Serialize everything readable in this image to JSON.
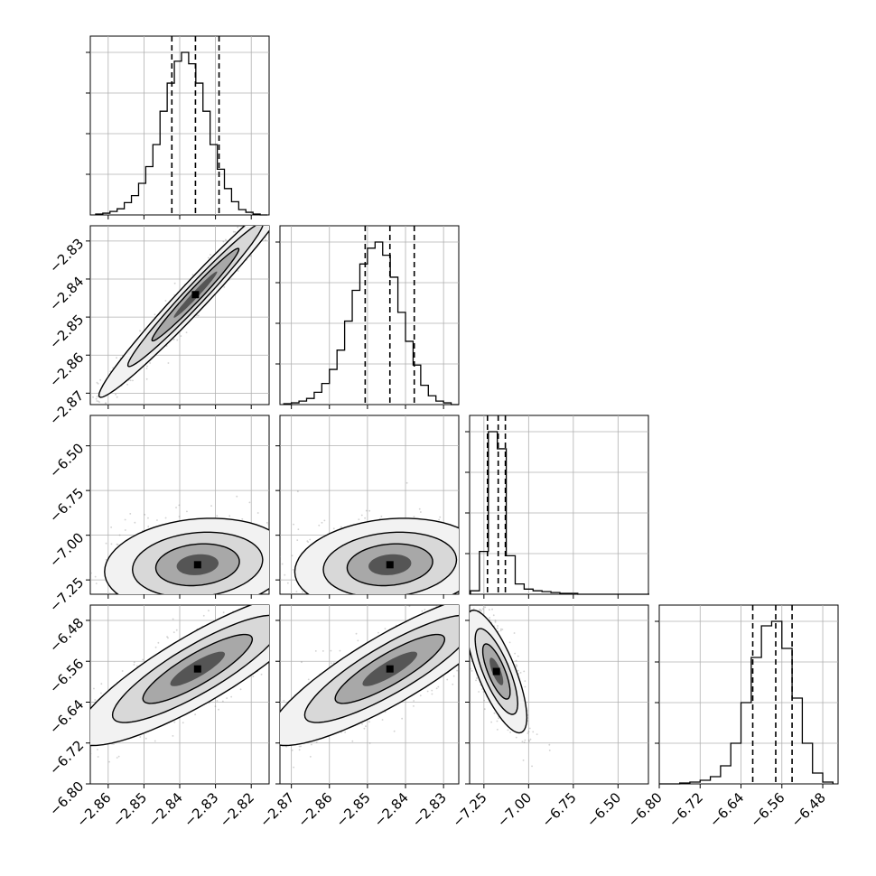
{
  "chart_data": [
    {
      "type": "histogram",
      "panel": "diag-0",
      "xlim": [
        -2.865,
        -2.815
      ],
      "bins_center": [
        -2.8625,
        -2.8605,
        -2.8585,
        -2.8565,
        -2.8545,
        -2.8525,
        -2.8505,
        -2.8485,
        -2.8465,
        -2.8445,
        -2.8425,
        -2.8405,
        -2.8385,
        -2.8365,
        -2.8345,
        -2.8325,
        -2.8305,
        -2.8285,
        -2.8265,
        -2.8245,
        -2.8225,
        -2.8205,
        -2.8185,
        -2.8165
      ],
      "counts": [
        1,
        2,
        4,
        7,
        14,
        22,
        36,
        55,
        80,
        118,
        150,
        175,
        185,
        172,
        150,
        118,
        80,
        52,
        30,
        15,
        6,
        3,
        1,
        0
      ],
      "quantile_lines": [
        -2.8422,
        -2.8356,
        -2.829
      ],
      "tick_labels": []
    },
    {
      "type": "histogram",
      "panel": "diag-1",
      "xlim": [
        -2.873,
        -2.826
      ],
      "bins_center": [
        -2.871,
        -2.869,
        -2.867,
        -2.865,
        -2.863,
        -2.861,
        -2.859,
        -2.857,
        -2.855,
        -2.853,
        -2.851,
        -2.849,
        -2.847,
        -2.845,
        -2.843,
        -2.841,
        -2.839,
        -2.837,
        -2.835,
        -2.833,
        -2.831,
        -2.829,
        -2.827
      ],
      "counts": [
        1,
        2,
        4,
        7,
        14,
        24,
        40,
        62,
        95,
        130,
        160,
        178,
        185,
        170,
        145,
        105,
        72,
        45,
        22,
        10,
        4,
        2,
        0
      ],
      "quantile_lines": [
        -2.8506,
        -2.8441,
        -2.8377
      ],
      "tick_labels": []
    },
    {
      "type": "histogram",
      "panel": "diag-2",
      "xlim": [
        -7.33,
        -6.33
      ],
      "bins_center": [
        -7.3,
        -7.25,
        -7.2,
        -7.15,
        -7.1,
        -7.05,
        -7.0,
        -6.95,
        -6.9,
        -6.85,
        -6.8,
        -6.75,
        -6.7,
        -6.65,
        -6.6,
        -6.55,
        -6.5,
        -6.45,
        -6.4,
        -6.35
      ],
      "counts": [
        4,
        50,
        190,
        170,
        45,
        12,
        6,
        4,
        3,
        2,
        1,
        1,
        0,
        0,
        0,
        0,
        0,
        0,
        0,
        0
      ],
      "quantile_lines": [
        -7.23,
        -7.17,
        -7.13
      ],
      "tick_labels": []
    },
    {
      "type": "histogram",
      "panel": "diag-3",
      "xlim": [
        -6.8,
        -6.45
      ],
      "bins_center": [
        -6.79,
        -6.77,
        -6.75,
        -6.73,
        -6.71,
        -6.69,
        -6.67,
        -6.65,
        -6.63,
        -6.61,
        -6.59,
        -6.57,
        -6.55,
        -6.53,
        -6.51,
        -6.49,
        -6.47
      ],
      "counts": [
        0,
        0,
        1,
        2,
        4,
        8,
        20,
        45,
        90,
        140,
        175,
        180,
        150,
        95,
        45,
        12,
        2
      ],
      "quantile_lines": [
        -6.617,
        -6.572,
        -6.54
      ],
      "tick_labels": [
        "−6.80",
        "−6.72",
        "−6.64",
        "−6.56",
        "−6.48"
      ]
    }
  ],
  "params": [
    {
      "name": "p0",
      "range": [
        -2.865,
        -2.815
      ],
      "ticks": [
        -2.86,
        -2.85,
        -2.84,
        -2.83,
        -2.82
      ],
      "tick_labels": [
        "−2.86",
        "−2.85",
        "−2.84",
        "−2.83",
        "−2.82"
      ]
    },
    {
      "name": "p1",
      "range": [
        -2.873,
        -2.826
      ],
      "ticks": [
        -2.87,
        -2.86,
        -2.85,
        -2.84,
        -2.83
      ],
      "tick_labels": [
        "−2.87",
        "−2.86",
        "−2.85",
        "−2.84",
        "−2.83"
      ]
    },
    {
      "name": "p2",
      "range": [
        -7.33,
        -6.33
      ],
      "ticks": [
        -7.25,
        -7.0,
        -6.75,
        -6.5
      ],
      "tick_labels": [
        "−7.25",
        "−7.00",
        "−6.75",
        "−6.50"
      ]
    },
    {
      "name": "p3",
      "range": [
        -6.8,
        -6.45
      ],
      "ticks": [
        -6.8,
        -6.72,
        -6.64,
        -6.56,
        -6.48
      ],
      "tick_labels": [
        "−6.80",
        "−6.72",
        "−6.64",
        "−6.56",
        "−6.48"
      ]
    }
  ],
  "pair_panels": [
    {
      "panel": "pair-1-0",
      "xparam": 0,
      "yparam": 1,
      "center": [
        -2.8356,
        -2.8441
      ],
      "contour_x_half": 0.0135,
      "contour_y_half": 0.0135,
      "correlation": 0.98
    },
    {
      "panel": "pair-2-0",
      "xparam": 0,
      "yparam": 2,
      "center": [
        -2.835,
        -7.165
      ],
      "contour_x_half": 0.013,
      "contour_y_half": 0.13,
      "correlation": 0.15
    },
    {
      "panel": "pair-2-1",
      "xparam": 1,
      "yparam": 2,
      "center": [
        -2.8441,
        -7.165
      ],
      "contour_x_half": 0.0125,
      "contour_y_half": 0.13,
      "correlation": 0.15
    },
    {
      "panel": "pair-3-0",
      "xparam": 0,
      "yparam": 3,
      "center": [
        -2.835,
        -6.575
      ],
      "contour_x_half": 0.017,
      "contour_y_half": 0.075,
      "correlation": 0.86
    },
    {
      "panel": "pair-3-1",
      "xparam": 1,
      "yparam": 3,
      "center": [
        -2.8441,
        -6.575
      ],
      "contour_x_half": 0.016,
      "contour_y_half": 0.075,
      "correlation": 0.86
    },
    {
      "panel": "pair-3-2",
      "xparam": 2,
      "yparam": 3,
      "center": [
        -7.18,
        -6.58
      ],
      "contour_x_half": 0.085,
      "contour_y_half": 0.06,
      "correlation": -0.75
    }
  ],
  "style": {
    "line_color": "#000000",
    "grid_color": "#b0b0b0",
    "point_color": "#7f7f7f"
  }
}
